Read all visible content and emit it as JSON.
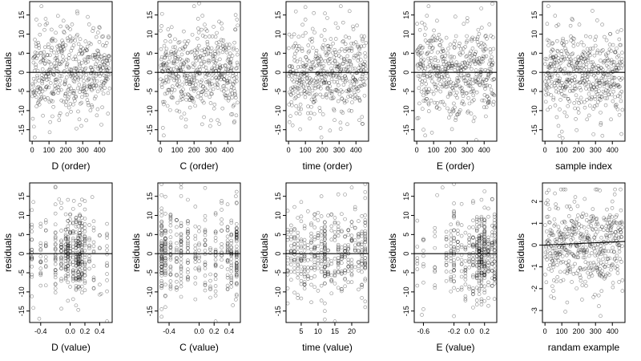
{
  "chart_data": [
    {
      "type": "scatter",
      "xlabel": "D (order)",
      "ylabel": "residuals",
      "xlim": [
        -15,
        475
      ],
      "ylim": [
        -18,
        18.5
      ],
      "xticks": [
        0,
        100,
        200,
        300,
        400
      ],
      "yticks": [
        -15,
        -10,
        -5,
        0,
        5,
        10,
        15
      ],
      "yticklabels": [
        "-15",
        "-10",
        "-5",
        "0",
        "5",
        "10",
        "15"
      ],
      "hline": 0,
      "seed": 11,
      "n": 460,
      "x_kind": "index",
      "spread": 5.5,
      "anchors": [
        [
          25,
          13.8
        ],
        [
          10,
          -14.2
        ],
        [
          15,
          -17.0
        ],
        [
          55,
          17.3
        ],
        [
          80,
          14.0
        ],
        [
          330,
          14.5
        ],
        [
          120,
          -11.5
        ],
        [
          160,
          -12.5
        ],
        [
          230,
          -10.3
        ],
        [
          450,
          -10.8
        ]
      ]
    },
    {
      "type": "scatter",
      "xlabel": "C (order)",
      "ylabel": "residuals",
      "xlim": [
        -15,
        475
      ],
      "ylim": [
        -18,
        18.5
      ],
      "xticks": [
        0,
        100,
        200,
        300,
        400
      ],
      "yticks": [
        -15,
        -10,
        -5,
        0,
        5,
        10,
        15
      ],
      "yticklabels": [
        "-15",
        "-10",
        "-5",
        "0",
        "5",
        "10",
        "15"
      ],
      "hline": 0,
      "seed": 23,
      "n": 460,
      "x_kind": "index",
      "spread": 5.5,
      "anchors": [
        [
          10,
          15.3
        ],
        [
          200,
          17.3
        ],
        [
          15,
          -14.5
        ],
        [
          20,
          -16.5
        ],
        [
          340,
          -12.5
        ],
        [
          350,
          -13.5
        ],
        [
          420,
          -11.0
        ],
        [
          440,
          -12.8
        ],
        [
          250,
          14.8
        ],
        [
          455,
          13.8
        ]
      ]
    },
    {
      "type": "scatter",
      "xlabel": "time (order)",
      "ylabel": "residuals",
      "xlim": [
        -15,
        475
      ],
      "ylim": [
        -18,
        18.5
      ],
      "xticks": [
        0,
        100,
        200,
        300,
        400
      ],
      "yticks": [
        -15,
        -10,
        -5,
        0,
        5,
        10,
        15
      ],
      "yticklabels": [
        "-15",
        "-10",
        "-5",
        "0",
        "5",
        "10",
        "15"
      ],
      "hline": 0,
      "seed": 37,
      "n": 460,
      "x_kind": "index",
      "spread": 5.5,
      "anchors": [
        [
          150,
          15.5
        ],
        [
          310,
          17.3
        ],
        [
          5,
          -13.0
        ],
        [
          190,
          -14.5
        ],
        [
          195,
          -17.0
        ],
        [
          420,
          -12.5
        ],
        [
          440,
          -13.5
        ],
        [
          230,
          14.2
        ],
        [
          100,
          13.8
        ],
        [
          360,
          -10.0
        ]
      ]
    },
    {
      "type": "scatter",
      "xlabel": "E (order)",
      "ylabel": "residuals",
      "xlim": [
        -15,
        475
      ],
      "ylim": [
        -18,
        18.5
      ],
      "xticks": [
        0,
        100,
        200,
        300,
        400
      ],
      "yticks": [
        -15,
        -10,
        -5,
        0,
        5,
        10,
        15
      ],
      "yticklabels": [
        "-15",
        "-10",
        "-5",
        "0",
        "5",
        "10",
        "15"
      ],
      "hline": 0,
      "seed": 53,
      "n": 460,
      "x_kind": "index",
      "spread": 5.5,
      "anchors": [
        [
          70,
          17.3
        ],
        [
          60,
          14.8
        ],
        [
          40,
          -15.0
        ],
        [
          50,
          -16.5
        ],
        [
          230,
          -12.5
        ],
        [
          240,
          -11.0
        ],
        [
          410,
          -11.5
        ],
        [
          300,
          14.2
        ],
        [
          120,
          13.5
        ],
        [
          30,
          13.0
        ]
      ]
    },
    {
      "type": "scatter",
      "xlabel": "sample index",
      "ylabel": "residuals",
      "xlim": [
        -15,
        475
      ],
      "ylim": [
        -18,
        18.5
      ],
      "xticks": [
        0,
        100,
        200,
        300,
        400
      ],
      "yticks": [
        -15,
        -10,
        -5,
        0,
        5,
        10,
        15
      ],
      "yticklabels": [
        "-15",
        "-10",
        "-5",
        "0",
        "5",
        "10",
        "15"
      ],
      "hline": 0,
      "seed": 71,
      "n": 460,
      "x_kind": "index",
      "spread": 5.5,
      "anchors": [
        [
          20,
          17.3
        ],
        [
          60,
          14.8
        ],
        [
          100,
          -15.5
        ],
        [
          105,
          -17.2
        ],
        [
          80,
          -14.0
        ],
        [
          250,
          -12.3
        ],
        [
          330,
          -10.5
        ],
        [
          460,
          -9.8
        ],
        [
          160,
          14.0
        ],
        [
          310,
          13.6
        ]
      ]
    },
    {
      "type": "scatter",
      "xlabel": "D (value)",
      "ylabel": "residuals",
      "xlim": [
        -0.55,
        0.57
      ],
      "ylim": [
        -18,
        18.5
      ],
      "xticks": [
        -0.4,
        0.0,
        0.2,
        0.4
      ],
      "xticklabels": [
        "-0.4",
        "0.0",
        "0.2",
        "0.4"
      ],
      "yticks": [
        -15,
        -10,
        -5,
        0,
        5,
        10,
        15
      ],
      "yticklabels": [
        "-15",
        "-10",
        "-5",
        "0",
        "5",
        "10",
        "15"
      ],
      "hline": 0,
      "seed": 89,
      "n": 420,
      "x_kind": "categorical",
      "spread": 5.5,
      "x_values": [
        -0.52,
        -0.4,
        -0.33,
        -0.2,
        -0.12,
        -0.06,
        -0.03,
        0.0,
        0.04,
        0.08,
        0.11,
        0.13,
        0.16,
        0.2,
        0.26,
        0.32,
        0.4,
        0.5
      ],
      "x_weights": [
        1,
        1,
        1,
        2,
        2,
        2,
        3,
        2,
        2,
        3,
        3,
        3,
        2,
        2,
        1,
        1,
        1,
        1
      ],
      "anchors": [
        [
          -0.5,
          -14.2
        ],
        [
          -0.42,
          -17.0
        ],
        [
          -0.2,
          17.3
        ],
        [
          -0.15,
          14.2
        ],
        [
          0.05,
          13.8
        ],
        [
          0.3,
          14.8
        ],
        [
          -0.5,
          13.5
        ],
        [
          0.42,
          -10.5
        ],
        [
          0.12,
          -8.6
        ],
        [
          0.5,
          4.8
        ]
      ]
    },
    {
      "type": "scatter",
      "xlabel": "C (value)",
      "ylabel": "residuals",
      "xlim": [
        -0.55,
        0.55
      ],
      "ylim": [
        -18,
        18.5
      ],
      "xticks": [
        -0.4,
        0.0,
        0.2,
        0.4
      ],
      "xticklabels": [
        "-0.4",
        "0.0",
        "0.2",
        "0.4"
      ],
      "yticks": [
        -15,
        -10,
        -5,
        0,
        5,
        10,
        15
      ],
      "yticklabels": [
        "-15",
        "-10",
        "-5",
        "0",
        "5",
        "10",
        "15"
      ],
      "hline": 0,
      "seed": 97,
      "n": 420,
      "x_kind": "categorical",
      "spread": 5.5,
      "x_values": [
        -0.5,
        -0.45,
        -0.38,
        -0.3,
        -0.24,
        -0.15,
        -0.05,
        0.0,
        0.08,
        0.15,
        0.22,
        0.3,
        0.38,
        0.43,
        0.5
      ],
      "x_weights": [
        4,
        2,
        2,
        1,
        2,
        2,
        1,
        1,
        2,
        1,
        2,
        1,
        2,
        2,
        4
      ],
      "anchors": [
        [
          -0.5,
          -16.5
        ],
        [
          -0.5,
          -14.5
        ],
        [
          -0.24,
          17.3
        ],
        [
          -0.5,
          15.3
        ],
        [
          0.49,
          15.0
        ],
        [
          0.45,
          -13.5
        ],
        [
          0.49,
          -12.0
        ],
        [
          0.3,
          13.8
        ],
        [
          -0.05,
          12.3
        ],
        [
          0.15,
          -11.5
        ]
      ]
    },
    {
      "type": "scatter",
      "xlabel": "time (value)",
      "ylabel": "residuals",
      "xlim": [
        0.5,
        25
      ],
      "ylim": [
        -18,
        18.5
      ],
      "xticks": [
        5,
        10,
        15,
        20
      ],
      "xticklabels": [
        "5",
        "10",
        "15",
        "20"
      ],
      "yticks": [
        -15,
        -10,
        -5,
        0,
        5,
        10,
        15
      ],
      "yticklabels": [
        "-15",
        "-10",
        "-5",
        "0",
        "5",
        "10",
        "15"
      ],
      "hline": 0,
      "seed": 113,
      "n": 430,
      "x_kind": "categorical",
      "spread": 5.5,
      "x_values": [
        1,
        2,
        3,
        4,
        5,
        6,
        7,
        8,
        9,
        10,
        11,
        12,
        13,
        14,
        15,
        16,
        17,
        18,
        19,
        20,
        21,
        22,
        23,
        24
      ],
      "x_weights": [
        1,
        1,
        1,
        1,
        1,
        1,
        1,
        1,
        1,
        1,
        1,
        3,
        1,
        1,
        1,
        1,
        1,
        1,
        1,
        1,
        1,
        1,
        1,
        2
      ],
      "anchors": [
        [
          12,
          -17.2
        ],
        [
          12,
          -15.0
        ],
        [
          12,
          -13.0
        ],
        [
          20,
          17.3
        ],
        [
          16,
          15.5
        ],
        [
          11,
          15.0
        ],
        [
          1,
          -13.0
        ],
        [
          24,
          -12.5
        ],
        [
          24,
          -14.0
        ],
        [
          5,
          13.5
        ]
      ]
    },
    {
      "type": "scatter",
      "xlabel": "E (value)",
      "ylabel": "residuals",
      "xlim": [
        -0.72,
        0.36
      ],
      "ylim": [
        -18,
        18.5
      ],
      "xticks": [
        -0.6,
        -0.2,
        0.0,
        0.2
      ],
      "xticklabels": [
        "-0.6",
        "-0.2",
        "0.0",
        "0.2"
      ],
      "yticks": [
        -15,
        -10,
        -5,
        0,
        5,
        10,
        15
      ],
      "yticklabels": [
        "-15",
        "-10",
        "-5",
        "0",
        "5",
        "10",
        "15"
      ],
      "hline": 0,
      "seed": 131,
      "n": 430,
      "x_kind": "categorical",
      "spread": 5.5,
      "x_values": [
        -0.68,
        -0.6,
        -0.45,
        -0.3,
        -0.24,
        -0.2,
        -0.15,
        -0.1,
        -0.05,
        0.0,
        0.05,
        0.1,
        0.13,
        0.16,
        0.2,
        0.25,
        0.3,
        0.33
      ],
      "x_weights": [
        1,
        1,
        1,
        1,
        2,
        2,
        2,
        1,
        1,
        2,
        3,
        4,
        5,
        5,
        4,
        3,
        3,
        3
      ],
      "anchors": [
        [
          -0.35,
          17.3
        ],
        [
          -0.42,
          15.3
        ],
        [
          -0.6,
          -14.5
        ],
        [
          -0.62,
          -16.0
        ],
        [
          0.16,
          -12.5
        ],
        [
          0.2,
          16.3
        ],
        [
          -0.05,
          -11.8
        ],
        [
          0.3,
          14.3
        ],
        [
          0.33,
          5.5
        ],
        [
          -0.1,
          13.0
        ]
      ]
    },
    {
      "type": "scatter",
      "xlabel": "randam example",
      "ylabel": "residuals",
      "xlim": [
        -15,
        475
      ],
      "ylim": [
        -3.55,
        2.85
      ],
      "xticks": [
        0,
        100,
        200,
        300,
        400
      ],
      "yticks": [
        -3,
        -2,
        -1,
        0,
        1,
        2
      ],
      "yticklabels": [
        "-3",
        "-2",
        "-1",
        "0",
        "1",
        "2"
      ],
      "hline": 0,
      "hline_slope": 0.00035,
      "seed": 151,
      "n": 460,
      "x_kind": "index",
      "spread": 0.95,
      "anchors": [
        [
          10,
          2.4
        ],
        [
          110,
          2.6
        ],
        [
          310,
          2.7
        ],
        [
          330,
          -3.3
        ],
        [
          320,
          -2.8
        ],
        [
          50,
          -2.1
        ],
        [
          220,
          -2.5
        ],
        [
          460,
          -2.1
        ],
        [
          180,
          2.2
        ],
        [
          400,
          2.0
        ]
      ]
    }
  ]
}
